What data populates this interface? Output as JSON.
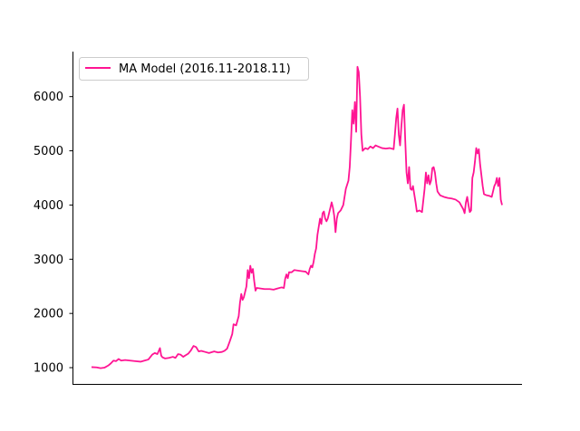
{
  "chart_data": {
    "type": "line",
    "title": "",
    "xlabel": "",
    "ylabel": "",
    "ylim": [
      700,
      6830
    ],
    "yticks": [
      1000,
      2000,
      3000,
      4000,
      5000,
      6000
    ],
    "grid": false,
    "legend_position": "top-left",
    "series": [
      {
        "name": "MA Model (2016.11-2018.11)",
        "color": "#ff1493",
        "points": [
          [
            0,
            1010
          ],
          [
            4,
            1005
          ],
          [
            7,
            990
          ],
          [
            10,
            1000
          ],
          [
            13,
            1040
          ],
          [
            15,
            1080
          ],
          [
            17,
            1130
          ],
          [
            19,
            1120
          ],
          [
            21,
            1160
          ],
          [
            23,
            1130
          ],
          [
            26,
            1140
          ],
          [
            30,
            1130
          ],
          [
            34,
            1120
          ],
          [
            38,
            1110
          ],
          [
            41,
            1130
          ],
          [
            44,
            1150
          ],
          [
            47,
            1240
          ],
          [
            49,
            1270
          ],
          [
            51,
            1250
          ],
          [
            53,
            1360
          ],
          [
            54,
            1220
          ],
          [
            55,
            1190
          ],
          [
            57,
            1170
          ],
          [
            60,
            1180
          ],
          [
            63,
            1200
          ],
          [
            65,
            1180
          ],
          [
            67,
            1250
          ],
          [
            69,
            1240
          ],
          [
            71,
            1200
          ],
          [
            73,
            1230
          ],
          [
            75,
            1260
          ],
          [
            77,
            1320
          ],
          [
            79,
            1400
          ],
          [
            81,
            1380
          ],
          [
            83,
            1300
          ],
          [
            85,
            1310
          ],
          [
            88,
            1290
          ],
          [
            91,
            1270
          ],
          [
            95,
            1300
          ],
          [
            98,
            1280
          ],
          [
            101,
            1290
          ],
          [
            103,
            1310
          ],
          [
            105,
            1350
          ],
          [
            107,
            1480
          ],
          [
            109,
            1620
          ],
          [
            110,
            1800
          ],
          [
            112,
            1780
          ],
          [
            114,
            1950
          ],
          [
            115,
            2200
          ],
          [
            116,
            2360
          ],
          [
            117,
            2250
          ],
          [
            118,
            2300
          ],
          [
            120,
            2500
          ],
          [
            121,
            2800
          ],
          [
            122,
            2650
          ],
          [
            123,
            2880
          ],
          [
            124,
            2750
          ],
          [
            125,
            2820
          ],
          [
            126,
            2600
          ],
          [
            127,
            2420
          ],
          [
            128,
            2470
          ],
          [
            131,
            2460
          ],
          [
            134,
            2450
          ],
          [
            138,
            2450
          ],
          [
            141,
            2440
          ],
          [
            144,
            2460
          ],
          [
            147,
            2480
          ],
          [
            149,
            2470
          ],
          [
            150,
            2640
          ],
          [
            151,
            2720
          ],
          [
            152,
            2650
          ],
          [
            153,
            2760
          ],
          [
            155,
            2760
          ],
          [
            157,
            2800
          ],
          [
            160,
            2790
          ],
          [
            163,
            2780
          ],
          [
            166,
            2770
          ],
          [
            168,
            2720
          ],
          [
            169,
            2820
          ],
          [
            170,
            2880
          ],
          [
            171,
            2850
          ],
          [
            172,
            2950
          ],
          [
            173,
            3100
          ],
          [
            174,
            3200
          ],
          [
            175,
            3450
          ],
          [
            176,
            3600
          ],
          [
            177,
            3750
          ],
          [
            178,
            3650
          ],
          [
            179,
            3850
          ],
          [
            180,
            3880
          ],
          [
            181,
            3750
          ],
          [
            182,
            3700
          ],
          [
            183,
            3750
          ],
          [
            184,
            3850
          ],
          [
            185,
            3950
          ],
          [
            186,
            4050
          ],
          [
            187,
            3950
          ],
          [
            188,
            3800
          ],
          [
            189,
            3500
          ],
          [
            190,
            3750
          ],
          [
            191,
            3850
          ],
          [
            193,
            3900
          ],
          [
            195,
            4000
          ],
          [
            197,
            4300
          ],
          [
            199,
            4450
          ],
          [
            200,
            4700
          ],
          [
            201,
            5200
          ],
          [
            202,
            5750
          ],
          [
            203,
            5500
          ],
          [
            204,
            5900
          ],
          [
            205,
            5350
          ],
          [
            206,
            6550
          ],
          [
            207,
            6450
          ],
          [
            208,
            6000
          ],
          [
            209,
            5300
          ],
          [
            210,
            5000
          ],
          [
            212,
            5050
          ],
          [
            214,
            5030
          ],
          [
            216,
            5080
          ],
          [
            218,
            5050
          ],
          [
            220,
            5100
          ],
          [
            222,
            5080
          ],
          [
            225,
            5050
          ],
          [
            228,
            5040
          ],
          [
            231,
            5050
          ],
          [
            234,
            5030
          ],
          [
            235,
            5300
          ],
          [
            236,
            5600
          ],
          [
            237,
            5780
          ],
          [
            238,
            5300
          ],
          [
            239,
            5100
          ],
          [
            240,
            5450
          ],
          [
            241,
            5750
          ],
          [
            242,
            5850
          ],
          [
            243,
            5200
          ],
          [
            244,
            4600
          ],
          [
            245,
            4400
          ],
          [
            246,
            4700
          ],
          [
            247,
            4300
          ],
          [
            248,
            4280
          ],
          [
            249,
            4350
          ],
          [
            250,
            4200
          ],
          [
            251,
            4050
          ],
          [
            252,
            3880
          ],
          [
            254,
            3900
          ],
          [
            256,
            3870
          ],
          [
            258,
            4300
          ],
          [
            259,
            4600
          ],
          [
            260,
            4400
          ],
          [
            261,
            4550
          ],
          [
            262,
            4380
          ],
          [
            263,
            4450
          ],
          [
            264,
            4680
          ],
          [
            265,
            4700
          ],
          [
            266,
            4600
          ],
          [
            267,
            4400
          ],
          [
            268,
            4250
          ],
          [
            270,
            4180
          ],
          [
            273,
            4150
          ],
          [
            276,
            4130
          ],
          [
            279,
            4120
          ],
          [
            282,
            4100
          ],
          [
            285,
            4050
          ],
          [
            288,
            3920
          ],
          [
            289,
            3850
          ],
          [
            290,
            4050
          ],
          [
            291,
            4150
          ],
          [
            292,
            4000
          ],
          [
            293,
            3870
          ],
          [
            294,
            3900
          ],
          [
            295,
            4500
          ],
          [
            296,
            4600
          ],
          [
            297,
            4800
          ],
          [
            298,
            5050
          ],
          [
            299,
            4950
          ],
          [
            300,
            5030
          ],
          [
            301,
            4750
          ],
          [
            302,
            4550
          ],
          [
            303,
            4350
          ],
          [
            304,
            4200
          ],
          [
            306,
            4180
          ],
          [
            308,
            4170
          ],
          [
            310,
            4150
          ],
          [
            311,
            4250
          ],
          [
            312,
            4350
          ],
          [
            313,
            4400
          ],
          [
            314,
            4500
          ],
          [
            315,
            4350
          ],
          [
            316,
            4500
          ],
          [
            317,
            4100
          ],
          [
            318,
            4000
          ]
        ]
      }
    ]
  }
}
